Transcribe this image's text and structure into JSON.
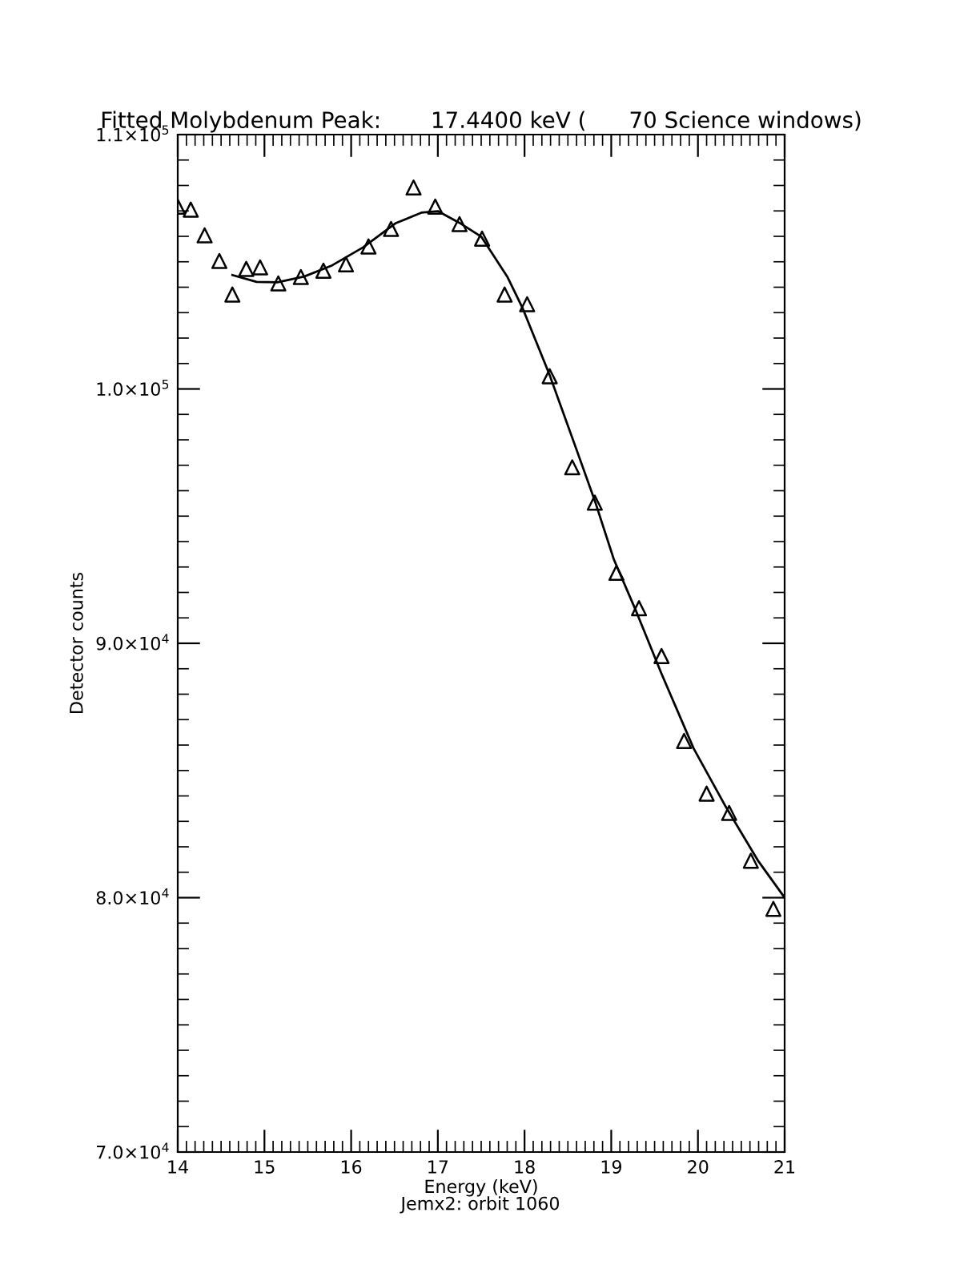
{
  "chart_data": {
    "type": "scatter",
    "title": "Fitted Molybdenum Peak:       17.4400 keV (      70 Science windows)",
    "xlabel": "Energy (keV)",
    "ylabel": "Detector counts",
    "annotations": [
      "Jemx2: orbit 1060"
    ],
    "series": [
      {
        "marker": "triangle",
        "color": "#000000",
        "x": [
          14.0,
          14.15,
          14.31,
          14.48,
          14.63,
          14.79,
          14.95,
          15.16,
          15.42,
          15.68,
          15.94,
          16.2,
          16.46,
          16.72,
          16.97,
          17.25,
          17.51,
          17.77,
          18.03,
          18.29,
          18.55,
          18.81,
          19.06,
          19.32,
          19.58,
          19.84,
          20.1,
          20.36,
          20.61,
          20.87
        ],
        "values": [
          107170,
          107050,
          106040,
          105030,
          103710,
          104720,
          104780,
          104150,
          104400,
          104650,
          104900,
          105600,
          106290,
          107920,
          107170,
          106480,
          105910,
          103710,
          103330,
          100500,
          96920,
          95530,
          92770,
          91380,
          89500,
          86160,
          84090,
          83330,
          81450,
          79560
        ]
      },
      {
        "type": "line",
        "marker": "none",
        "line_style": "solid",
        "color": "#000000",
        "x": [
          14.63,
          14.91,
          15.15,
          15.46,
          15.77,
          16.14,
          16.51,
          16.81,
          17.0,
          17.25,
          17.5,
          17.8,
          17.98,
          18.29,
          18.6,
          18.82,
          19.03,
          19.28,
          19.58,
          19.95,
          20.32,
          20.69,
          21.0
        ],
        "values": [
          104480,
          104210,
          104190,
          104420,
          104840,
          105570,
          106510,
          106930,
          106990,
          106530,
          105990,
          104420,
          103160,
          100540,
          97610,
          95510,
          93300,
          91320,
          88800,
          85870,
          83580,
          81470,
          80000
        ]
      }
    ],
    "xlim": [
      14,
      21
    ],
    "ylim": [
      70000,
      110000
    ],
    "xticks": [
      14,
      {
        "value": 14.1,
        "label": null
      },
      {
        "value": 14.2,
        "label": null
      },
      {
        "value": 14.3,
        "label": null
      },
      {
        "value": 14.4,
        "label": null
      },
      {
        "value": 14.5,
        "label": null
      },
      {
        "value": 14.6,
        "label": null
      },
      {
        "value": 14.7,
        "label": null
      },
      {
        "value": 14.8,
        "label": null
      },
      {
        "value": 14.9,
        "label": null
      },
      15,
      {
        "value": 15.1,
        "label": null
      },
      {
        "value": 15.2,
        "label": null
      },
      {
        "value": 15.3,
        "label": null
      },
      {
        "value": 15.4,
        "label": null
      },
      {
        "value": 15.5,
        "label": null
      },
      {
        "value": 15.6,
        "label": null
      },
      {
        "value": 15.7,
        "label": null
      },
      {
        "value": 15.8,
        "label": null
      },
      {
        "value": 15.9,
        "label": null
      },
      16,
      {
        "value": 16.1,
        "label": null
      },
      {
        "value": 16.2,
        "label": null
      },
      {
        "value": 16.3,
        "label": null
      },
      {
        "value": 16.4,
        "label": null
      },
      {
        "value": 16.5,
        "label": null
      },
      {
        "value": 16.6,
        "label": null
      },
      {
        "value": 16.7,
        "label": null
      },
      {
        "value": 16.8,
        "label": null
      },
      {
        "value": 16.9,
        "label": null
      },
      17,
      {
        "value": 17.1,
        "label": null
      },
      {
        "value": 17.2,
        "label": null
      },
      {
        "value": 17.3,
        "label": null
      },
      {
        "value": 17.4,
        "label": null
      },
      {
        "value": 17.5,
        "label": null
      },
      {
        "value": 17.6,
        "label": null
      },
      {
        "value": 17.7,
        "label": null
      },
      {
        "value": 17.8,
        "label": null
      },
      {
        "value": 17.9,
        "label": null
      },
      18,
      {
        "value": 18.1,
        "label": null
      },
      {
        "value": 18.2,
        "label": null
      },
      {
        "value": 18.3,
        "label": null
      },
      {
        "value": 18.4,
        "label": null
      },
      {
        "value": 18.5,
        "label": null
      },
      {
        "value": 18.6,
        "label": null
      },
      {
        "value": 18.7,
        "label": null
      },
      {
        "value": 18.8,
        "label": null
      },
      {
        "value": 18.9,
        "label": null
      },
      19,
      {
        "value": 19.1,
        "label": null
      },
      {
        "value": 19.2,
        "label": null
      },
      {
        "value": 19.3,
        "label": null
      },
      {
        "value": 19.4,
        "label": null
      },
      {
        "value": 19.5,
        "label": null
      },
      {
        "value": 19.6,
        "label": null
      },
      {
        "value": 19.7,
        "label": null
      },
      {
        "value": 19.8,
        "label": null
      },
      {
        "value": 19.9,
        "label": null
      },
      20,
      {
        "value": 20.1,
        "label": null
      },
      {
        "value": 20.2,
        "label": null
      },
      {
        "value": 20.3,
        "label": null
      },
      {
        "value": 20.4,
        "label": null
      },
      {
        "value": 20.5,
        "label": null
      },
      {
        "value": 20.6,
        "label": null
      },
      {
        "value": 20.7,
        "label": null
      },
      {
        "value": 20.8,
        "label": null
      },
      {
        "value": 20.9,
        "label": null
      },
      21
    ],
    "yticks": [
      {
        "value": 70000,
        "label": "7.0×10$^{4}$"
      },
      {
        "value": 71000,
        "label": null
      },
      {
        "value": 72000,
        "label": null
      },
      {
        "value": 73000,
        "label": null
      },
      {
        "value": 74000,
        "label": null
      },
      {
        "value": 75000,
        "label": null
      },
      {
        "value": 76000,
        "label": null
      },
      {
        "value": 77000,
        "label": null
      },
      {
        "value": 78000,
        "label": null
      },
      {
        "value": 79000,
        "label": null
      },
      {
        "value": 80000,
        "label": "8.0×10$^{4}$"
      },
      {
        "value": 81000,
        "label": null
      },
      {
        "value": 82000,
        "label": null
      },
      {
        "value": 83000,
        "label": null
      },
      {
        "value": 84000,
        "label": null
      },
      {
        "value": 85000,
        "label": null
      },
      {
        "value": 86000,
        "label": null
      },
      {
        "value": 87000,
        "label": null
      },
      {
        "value": 88000,
        "label": null
      },
      {
        "value": 89000,
        "label": null
      },
      {
        "value": 90000,
        "label": "9.0×10$^{4}$"
      },
      {
        "value": 91000,
        "label": null
      },
      {
        "value": 92000,
        "label": null
      },
      {
        "value": 93000,
        "label": null
      },
      {
        "value": 94000,
        "label": null
      },
      {
        "value": 95000,
        "label": null
      },
      {
        "value": 96000,
        "label": null
      },
      {
        "value": 97000,
        "label": null
      },
      {
        "value": 98000,
        "label": null
      },
      {
        "value": 99000,
        "label": null
      },
      {
        "value": 100000,
        "label": "1.0×10$^{5}$"
      },
      {
        "value": 101000,
        "label": null
      },
      {
        "value": 102000,
        "label": null
      },
      {
        "value": 103000,
        "label": null
      },
      {
        "value": 104000,
        "label": null
      },
      {
        "value": 105000,
        "label": null
      },
      {
        "value": 106000,
        "label": null
      },
      {
        "value": 107000,
        "label": null
      },
      {
        "value": 108000,
        "label": null
      },
      {
        "value": 109000,
        "label": null
      },
      {
        "value": 110000,
        "label": "1.1×10$^{5}$"
      }
    ],
    "grid": false,
    "legend": false
  }
}
